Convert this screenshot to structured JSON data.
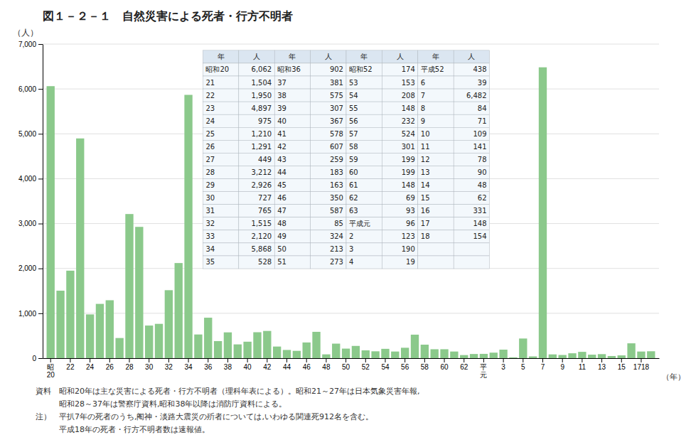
{
  "chart_data": {
    "type": "bar",
    "title": "図１－２－１　自然災害による死者・行方不明者",
    "ylabel": "（人）",
    "xlabel": "（年）",
    "color": "#8bc98b",
    "grid": true,
    "categories": [
      "昭\n20",
      null,
      "22",
      null,
      "24",
      null,
      "26",
      null,
      "28",
      null,
      "30",
      null,
      "32",
      null,
      "34",
      null,
      "36",
      null,
      "38",
      null,
      "40",
      null,
      "42",
      null,
      "44",
      null,
      "46",
      null,
      "48",
      null,
      "50",
      null,
      "52",
      null,
      "54",
      null,
      "56",
      null,
      "58",
      null,
      "60",
      null,
      "62",
      null,
      "平\n元",
      null,
      "3",
      null,
      "5",
      null,
      "7",
      null,
      "9",
      null,
      "11",
      null,
      "13",
      null,
      "15",
      null,
      "1718",
      null
    ],
    "values": [
      6062,
      1504,
      1950,
      4897,
      975,
      1210,
      1291,
      449,
      3212,
      2926,
      727,
      765,
      1515,
      2120,
      5868,
      528,
      902,
      381,
      575,
      307,
      367,
      578,
      607,
      259,
      183,
      163,
      350,
      587,
      85,
      324,
      213,
      273,
      174,
      153,
      208,
      148,
      232,
      524,
      301,
      199,
      199,
      148,
      69,
      93,
      96,
      123,
      190,
      19,
      438,
      39,
      6482,
      84,
      71,
      109,
      141,
      78,
      90,
      48,
      62,
      331,
      148,
      154
    ],
    "ylim": [
      0,
      7000
    ],
    "yticks": [
      0,
      {
        "value": 1000,
        "label": "1,000"
      },
      {
        "value": 2000,
        "label": "2,000"
      },
      {
        "value": 3000,
        "label": "3,000"
      },
      {
        "value": 4000,
        "label": "4,000"
      },
      {
        "value": 5000,
        "label": "5,000"
      },
      {
        "value": 6000,
        "label": "6,000"
      },
      {
        "value": 7000,
        "label": "7,000"
      }
    ],
    "table": {
      "header": [
        "年",
        "人",
        "年",
        "人",
        "年",
        "人",
        "年",
        "人"
      ],
      "rows": [
        [
          "昭和20",
          "6,062",
          "昭和36",
          "902",
          "昭和52",
          "174",
          "平成52",
          "438"
        ],
        [
          "21",
          "1,504",
          "37",
          "381",
          "53",
          "153",
          "6",
          "39"
        ],
        [
          "22",
          "1,950",
          "38",
          "575",
          "54",
          "208",
          "7",
          "6,482"
        ],
        [
          "23",
          "4,897",
          "39",
          "307",
          "55",
          "148",
          "8",
          "84"
        ],
        [
          "24",
          "975",
          "40",
          "367",
          "56",
          "232",
          "9",
          "71"
        ],
        [
          "25",
          "1,210",
          "41",
          "578",
          "57",
          "524",
          "10",
          "109"
        ],
        [
          "26",
          "1,291",
          "42",
          "607",
          "58",
          "301",
          "11",
          "141"
        ],
        [
          "27",
          "449",
          "43",
          "259",
          "59",
          "199",
          "12",
          "78"
        ],
        [
          "28",
          "3,212",
          "44",
          "183",
          "60",
          "199",
          "13",
          "90"
        ],
        [
          "29",
          "2,926",
          "45",
          "163",
          "61",
          "148",
          "14",
          "48"
        ],
        [
          "30",
          "727",
          "46",
          "350",
          "62",
          "69",
          "15",
          "62"
        ],
        [
          "31",
          "765",
          "47",
          "587",
          "63",
          "93",
          "16",
          "331"
        ],
        [
          "32",
          "1,515",
          "48",
          "85",
          "平成元",
          "96",
          "17",
          "148"
        ],
        [
          "33",
          "2,120",
          "49",
          "324",
          "2",
          "123",
          "18",
          "154"
        ],
        [
          "34",
          "5,868",
          "50",
          "213",
          "3",
          "190",
          null,
          null
        ],
        [
          "35",
          "528",
          "51",
          "273",
          "4",
          "19",
          null,
          null
        ]
      ]
    },
    "notes": [
      "資料　昭和20年は主な災害による死者・行方不明者（理科年表による）。昭和21～27年は日本気象災害年報,",
      "　　　昭和28～37年は警察庁資料,昭和38年以降は消防庁資料による。",
      "注）　平扒7年の死者のうち,阉神・淡路大震災の歽者については,いわゆる関連死912名を含む。",
      "　　　平成18年の死者・行方不明者数は速報値。"
    ]
  }
}
